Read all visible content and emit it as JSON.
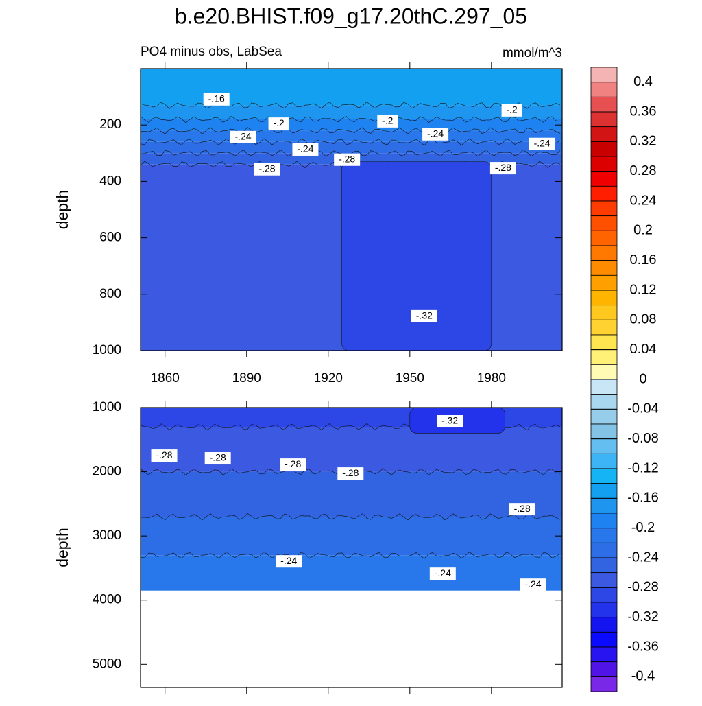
{
  "chart_data": [
    {
      "type": "contour",
      "title": "b.e20.BHIST.f09_g17.20thC.297_05",
      "subtitle": "PO4 minus obs, LabSea",
      "units": "mmol/m^3",
      "y_label": "depth",
      "xlim": [
        1851,
        2006
      ],
      "xticks": [
        1860,
        1890,
        1920,
        1950,
        1980
      ],
      "ylim": [
        0,
        1000
      ],
      "yticks": [
        200,
        400,
        600,
        800,
        1000
      ],
      "layers": {
        "depths": [
          0,
          130,
          180,
          220,
          260,
          300,
          340,
          1000
        ],
        "values": [
          -0.16,
          -0.18,
          -0.2,
          -0.22,
          -0.24,
          -0.26,
          -0.28
        ]
      },
      "patches": [
        {
          "x": [
            1925,
            1980
          ],
          "y": [
            330,
            1000
          ],
          "value": -0.3
        }
      ],
      "contour_labels": {
        "x": [
          1878.9,
          1901.8,
          1941.8,
          1987.5,
          1888.7,
          1911.6,
          1959.4,
          1998.6,
          1897.5,
          1926.9,
          1984.3,
          1955.3
        ],
        "y": [
          109,
          195,
          187,
          148,
          243,
          287,
          233,
          267,
          357,
          323,
          353,
          878
        ],
        "values": [
          -0.16,
          -0.2,
          -0.2,
          -0.2,
          -0.24,
          -0.24,
          -0.24,
          -0.24,
          -0.28,
          -0.28,
          -0.28,
          -0.32
        ],
        "value_labels": [
          "-.16",
          "-.2",
          "-.2",
          "-.2",
          "-.24",
          "-.24",
          "-.24",
          "-.24",
          "-.28",
          "-.28",
          "-.28",
          "-.32"
        ]
      }
    },
    {
      "type": "contour",
      "y_label": "depth",
      "xlim": [
        1851,
        2006
      ],
      "xticks": [
        1860,
        1890,
        1920,
        1950,
        1980
      ],
      "ylim": [
        1000,
        5360
      ],
      "yticks": [
        1000,
        2000,
        3000,
        4000,
        5000
      ],
      "layers": {
        "depths": [
          1000,
          1300,
          2000,
          2700,
          3300,
          3850
        ],
        "values": [
          -0.3,
          -0.28,
          -0.26,
          -0.24,
          -0.22
        ]
      },
      "patches": [
        {
          "x": [
            1950,
            1985
          ],
          "y": [
            1000,
            1400
          ],
          "value": -0.32
        }
      ],
      "contour_labels": {
        "x": [
          1964.7,
          1859.7,
          1879.4,
          1907,
          1928.2,
          1991.3,
          1905.5,
          1962.1,
          1995.3
        ],
        "y": [
          1214,
          1749,
          1791,
          1888,
          2027,
          2583,
          3396,
          3588,
          3759
        ],
        "values": [
          -0.32,
          -0.28,
          -0.28,
          -0.28,
          -0.28,
          -0.28,
          -0.24,
          -0.24,
          -0.24
        ],
        "value_labels": [
          "-.32",
          "-.28",
          "-.28",
          "-.28",
          "-.28",
          "-.28",
          "-.24",
          "-.24",
          "-.24"
        ]
      }
    },
    {
      "type": "colorbar",
      "lim": [
        -0.4,
        0.4
      ],
      "ticks": [
        0.4,
        0.36,
        0.32,
        0.28,
        0.24,
        0.2,
        0.16,
        0.12,
        0.08,
        0.04,
        0,
        -0.04,
        -0.08,
        -0.12,
        -0.16,
        -0.2,
        -0.24,
        -0.28,
        -0.32,
        -0.36,
        -0.4
      ],
      "colors": [
        "#f5b4b4",
        "#f08282",
        "#e65050",
        "#dc3232",
        "#d21414",
        "#c80000",
        "#dc0000",
        "#f00000",
        "#ff1e00",
        "#ff3c00",
        "#ff5000",
        "#ff6400",
        "#ff7800",
        "#ff8c00",
        "#ffa000",
        "#ffb400",
        "#ffc81e",
        "#ffd232",
        "#ffe650",
        "#fff078",
        "#fffab4",
        "#c8e6f5",
        "#aad7f0",
        "#96cdeb",
        "#82c3e6",
        "#64bef0",
        "#3cb4f5",
        "#14b4f5",
        "#14a0f0",
        "#1e96f0",
        "#1e82f0",
        "#2878eb",
        "#2d6ee6",
        "#3264e1",
        "#3c5ae1",
        "#2d46e6",
        "#2332eb",
        "#1414f0",
        "#0a0aff",
        "#2814f0",
        "#5014e6",
        "#7828e6"
      ]
    }
  ]
}
